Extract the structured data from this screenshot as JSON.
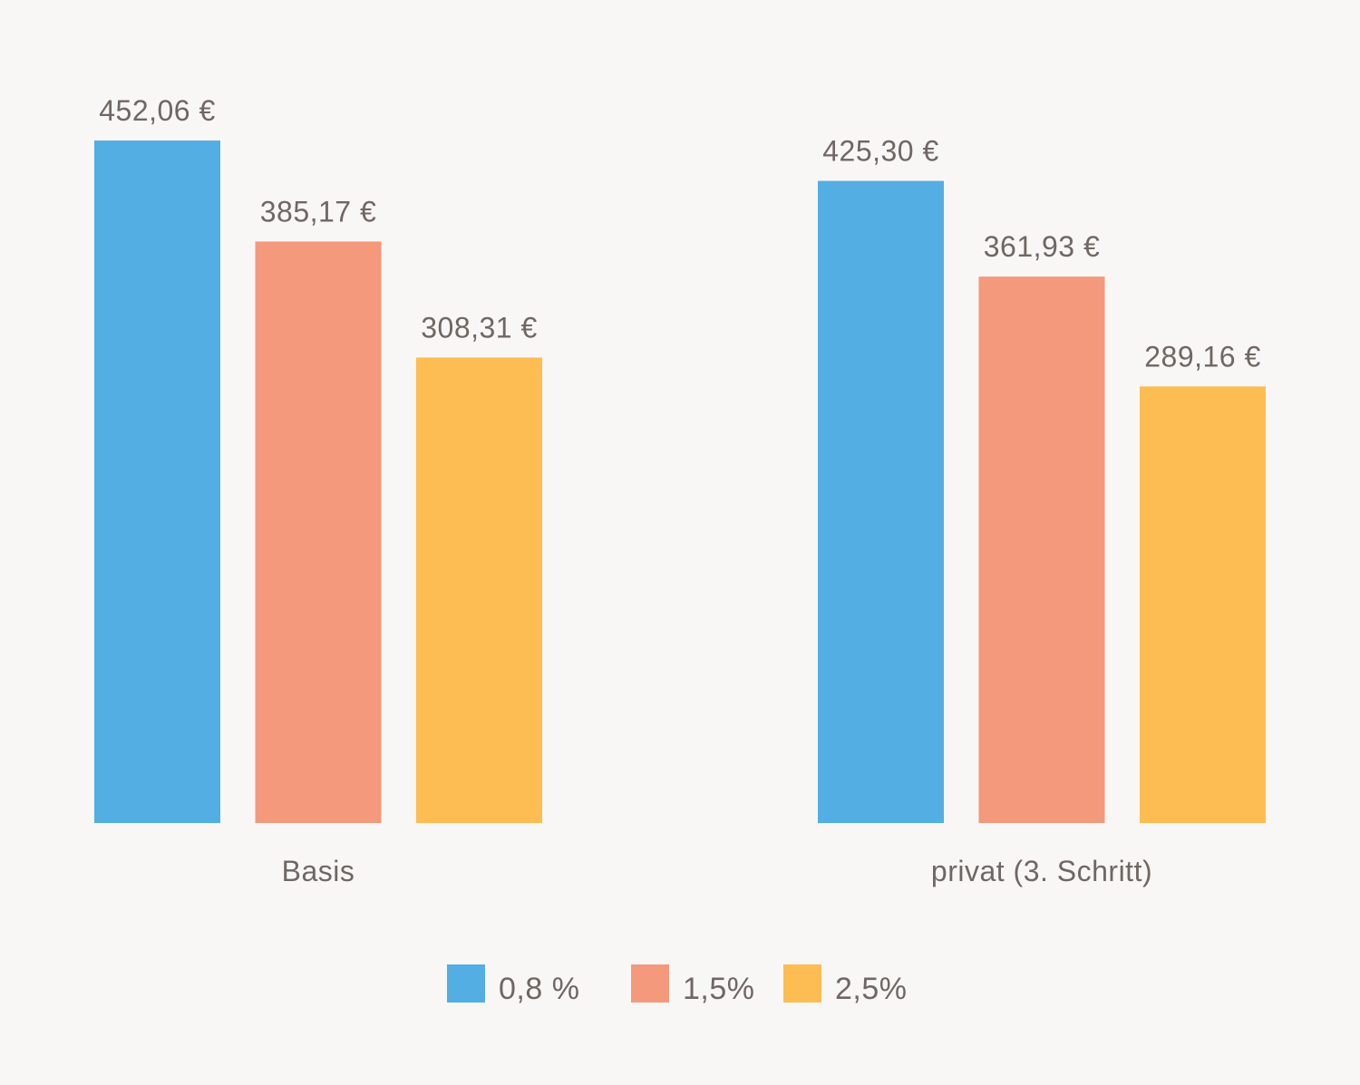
{
  "chart_data": {
    "type": "bar",
    "categories": [
      "Basis",
      "privat (3. Schritt)"
    ],
    "series": [
      {
        "name": "0,8 %",
        "color": "#52aee3",
        "values": [
          452.06,
          425.3
        ],
        "labels": [
          "452,06 €",
          "425,30 €"
        ]
      },
      {
        "name": "1,5%",
        "color": "#f4997c",
        "values": [
          385.17,
          361.93
        ],
        "labels": [
          "385,17 €",
          "361,93 €"
        ]
      },
      {
        "name": "2,5%",
        "color": "#fdbd52",
        "values": [
          308.31,
          289.16
        ],
        "labels": [
          "308,31 €",
          "289,16 €"
        ]
      }
    ],
    "ylim": [
      0,
      452.06
    ],
    "grid": false,
    "legend_position": "bottom-center"
  }
}
